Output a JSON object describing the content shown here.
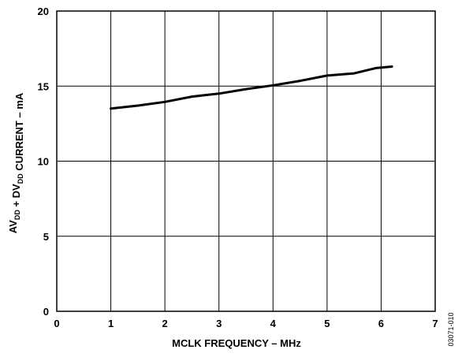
{
  "chart_data": {
    "type": "line",
    "title": "",
    "xlabel": "MCLK FREQUENCY – MHz",
    "ylabel": {
      "parts": [
        {
          "text": "AV",
          "sub": false
        },
        {
          "text": "DD",
          "sub": true
        },
        {
          "text": " + DV",
          "sub": false
        },
        {
          "text": "DD",
          "sub": true
        },
        {
          "text": " CURRENT – mA",
          "sub": false
        }
      ]
    },
    "xlim": [
      0,
      7
    ],
    "ylim": [
      0,
      20
    ],
    "x_ticks": [
      0,
      1,
      2,
      3,
      4,
      5,
      6,
      7
    ],
    "y_ticks": [
      0,
      5,
      10,
      15,
      20
    ],
    "grid": true,
    "series": [
      {
        "x": [
          1.0,
          1.5,
          2.0,
          2.5,
          3.0,
          3.5,
          4.0,
          4.5,
          5.0,
          5.5,
          5.9,
          6.2
        ],
        "y": [
          13.5,
          13.7,
          13.95,
          14.3,
          14.5,
          14.8,
          15.05,
          15.35,
          15.7,
          15.85,
          16.2,
          16.3
        ]
      }
    ],
    "colors": {
      "line": "#000000",
      "grid": "#000000"
    }
  },
  "figure_id": "03071-010"
}
